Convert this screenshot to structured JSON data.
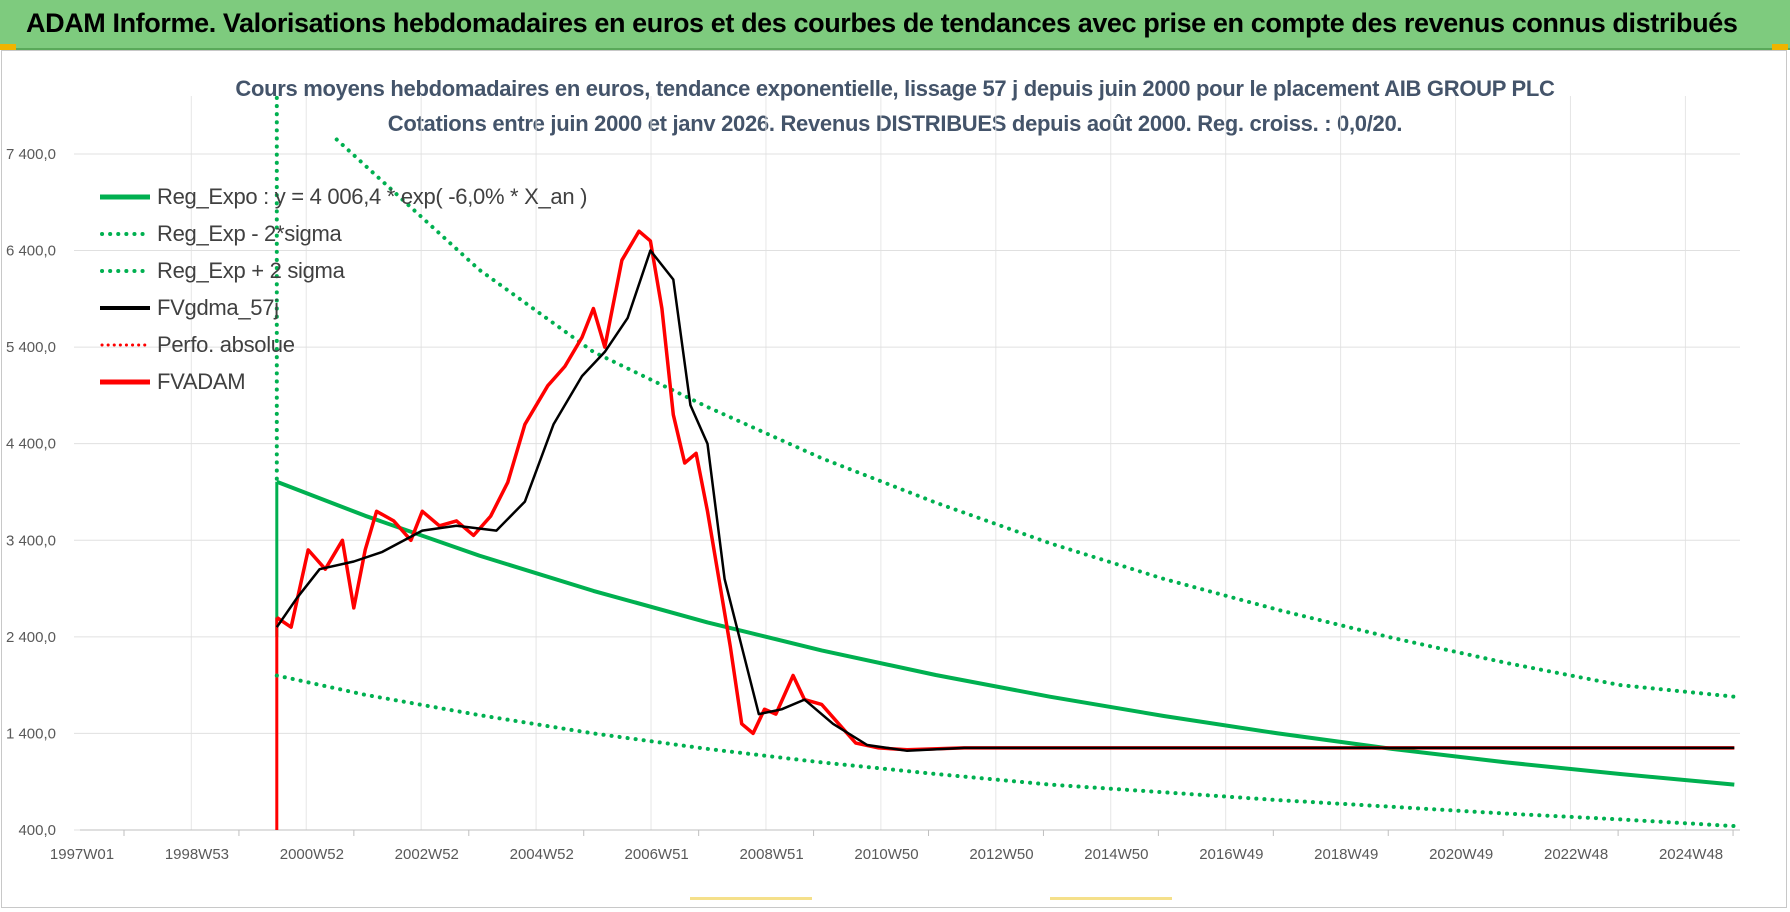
{
  "banner": {
    "title": "ADAM Informe. Valorisations hebdomadaires en euros et des courbes de tendances avec prise en compte des revenus connus distribués"
  },
  "chart_data": {
    "type": "line",
    "title_line1": "Cours moyens hebdomadaires en euros, tendance exponentielle, lissage 57 j depuis juin 2000 pour le placement AIB GROUP PLC",
    "title_line2": "Cotations entre juin 2000 et janv 2026.  Revenus DISTRIBUES depuis août 2000.  Reg. croiss. : 0,0/20.",
    "y_ticks": [
      "400,0",
      "1 400,0",
      "2 400,0",
      "3 400,0",
      "4 400,0",
      "5 400,0",
      "6 400,0",
      "7 400,0"
    ],
    "y_tick_values": [
      400,
      1400,
      2400,
      3400,
      4400,
      5400,
      6400,
      7400
    ],
    "x_ticks": [
      "1997W01",
      "1998W53",
      "2000W52",
      "2002W52",
      "2004W52",
      "2006W51",
      "2008W51",
      "2010W50",
      "2012W50",
      "2014W50",
      "2016W49",
      "2018W49",
      "2020W49",
      "2022W48",
      "2024W48"
    ],
    "ylim": [
      400,
      8000
    ],
    "xlim": [
      1997.0,
      2026.1
    ],
    "grid": true,
    "legend_position": "top-left",
    "series": [
      {
        "name": "Reg_Expo : y = 4 006,4 * exp( -6,0% *  X_an )",
        "color": "#00b050",
        "style": "solid",
        "x": [
          2000.45,
          2002,
          2004,
          2006,
          2008,
          2010,
          2012,
          2014,
          2016,
          2018,
          2020,
          2022,
          2024,
          2026
        ],
        "y": [
          4006,
          3653,
          3241,
          2876,
          2550,
          2260,
          2005,
          1780,
          1580,
          1400,
          1240,
          1100,
          980,
          870
        ]
      },
      {
        "name": "Reg_Exp - 2*sigma",
        "color": "#00b050",
        "style": "dotted",
        "x": [
          2000.45,
          2002,
          2004,
          2006,
          2008,
          2010,
          2012,
          2014,
          2016,
          2018,
          2020,
          2022,
          2024,
          2026
        ],
        "y": [
          2000,
          1800,
          1590,
          1400,
          1240,
          1100,
          980,
          870,
          790,
          710,
          640,
          570,
          510,
          440
        ]
      },
      {
        "name": "Reg_Exp + 2 sigma",
        "color": "#00b050",
        "style": "dotted",
        "x": [
          2001.5,
          2004,
          2006,
          2008,
          2010,
          2012,
          2014,
          2016,
          2018,
          2020,
          2022,
          2024,
          2026
        ],
        "y": [
          7550,
          6200,
          5350,
          4780,
          4250,
          3790,
          3370,
          3000,
          2680,
          2390,
          2130,
          1900,
          1780
        ]
      },
      {
        "name": "FVgdma_57j",
        "color": "#000000",
        "style": "solid",
        "x": [
          2000.45,
          2000.8,
          2001.2,
          2001.8,
          2002.3,
          2003.0,
          2003.6,
          2004.3,
          2004.8,
          2005.3,
          2005.8,
          2006.2,
          2006.6,
          2007.0,
          2007.4,
          2007.7,
          2008.0,
          2008.3,
          2008.6,
          2008.9,
          2009.3,
          2009.7,
          2010.2,
          2010.8,
          2011.5,
          2012.5,
          2013.5,
          2015,
          2017,
          2020,
          2023,
          2026
        ],
        "y": [
          2500,
          2800,
          3100,
          3180,
          3280,
          3500,
          3550,
          3500,
          3800,
          4600,
          5100,
          5350,
          5700,
          6400,
          6100,
          4800,
          4400,
          3000,
          2300,
          1600,
          1650,
          1750,
          1500,
          1280,
          1220,
          1250,
          1250,
          1250,
          1250,
          1250,
          1250,
          1250
        ]
      },
      {
        "name": "Perfo. absolue",
        "color": "#ff0000",
        "style": "dotted",
        "x": [],
        "y": []
      },
      {
        "name": "FVADAM",
        "color": "#ff0000",
        "style": "solid",
        "x": [
          2000.45,
          2000.7,
          2001.0,
          2001.3,
          2001.6,
          2001.8,
          2002.0,
          2002.2,
          2002.5,
          2002.8,
          2003.0,
          2003.3,
          2003.6,
          2003.9,
          2004.2,
          2004.5,
          2004.8,
          2005.2,
          2005.5,
          2005.8,
          2006.0,
          2006.2,
          2006.5,
          2006.8,
          2007.0,
          2007.2,
          2007.4,
          2007.6,
          2007.8,
          2008.0,
          2008.2,
          2008.4,
          2008.6,
          2008.8,
          2009.0,
          2009.2,
          2009.5,
          2009.7,
          2010.0,
          2010.3,
          2010.6,
          2011.0,
          2011.5,
          2012.5,
          2013.5,
          2015,
          2017,
          2020,
          2023,
          2026
        ],
        "y": [
          2600,
          2500,
          3300,
          3100,
          3400,
          2700,
          3300,
          3700,
          3600,
          3400,
          3700,
          3550,
          3600,
          3450,
          3650,
          4000,
          4600,
          5000,
          5200,
          5500,
          5800,
          5400,
          6300,
          6600,
          6500,
          5800,
          4700,
          4200,
          4300,
          3700,
          3000,
          2300,
          1500,
          1400,
          1650,
          1600,
          2000,
          1750,
          1700,
          1500,
          1300,
          1250,
          1230,
          1250,
          1250,
          1250,
          1250,
          1250,
          1250,
          1250
        ]
      }
    ]
  }
}
